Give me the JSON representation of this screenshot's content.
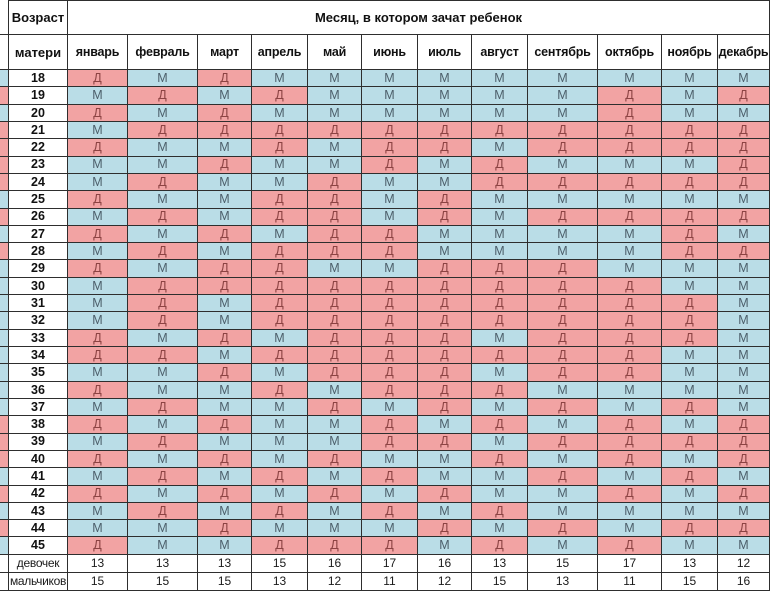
{
  "chart_data": {
    "type": "table",
    "title": "Месяц, в котором зачат ребенок",
    "age_header_top": "Возраст",
    "age_header_bottom": "матери",
    "months": [
      "январь",
      "февраль",
      "март",
      "апрель",
      "май",
      "июнь",
      "июль",
      "август",
      "сентябрь",
      "октябрь",
      "ноябрь",
      "декабрь"
    ],
    "girl_letter": "Д",
    "boy_letter": "М",
    "colors": {
      "girl_bg": "#f2a3a3",
      "boy_bg": "#badde7",
      "girl_text": "#8c4343",
      "boy_text": "#4d5f6b",
      "grid_line": "#2e2e2e"
    },
    "rows": [
      {
        "age": "18",
        "cells": [
          "Д",
          "М",
          "Д",
          "М",
          "М",
          "М",
          "М",
          "М",
          "М",
          "М",
          "М",
          "М"
        ]
      },
      {
        "age": "19",
        "cells": [
          "М",
          "Д",
          "М",
          "Д",
          "М",
          "М",
          "М",
          "М",
          "М",
          "Д",
          "М",
          "Д"
        ]
      },
      {
        "age": "20",
        "cells": [
          "Д",
          "М",
          "Д",
          "М",
          "М",
          "М",
          "М",
          "М",
          "М",
          "Д",
          "М",
          "М"
        ]
      },
      {
        "age": "21",
        "cells": [
          "М",
          "Д",
          "Д",
          "Д",
          "Д",
          "Д",
          "Д",
          "Д",
          "Д",
          "Д",
          "Д",
          "Д"
        ]
      },
      {
        "age": "22",
        "cells": [
          "Д",
          "М",
          "М",
          "Д",
          "М",
          "Д",
          "Д",
          "М",
          "Д",
          "Д",
          "Д",
          "Д"
        ]
      },
      {
        "age": "23",
        "cells": [
          "М",
          "М",
          "Д",
          "М",
          "М",
          "Д",
          "М",
          "Д",
          "М",
          "М",
          "М",
          "Д"
        ]
      },
      {
        "age": "24",
        "cells": [
          "М",
          "Д",
          "М",
          "М",
          "Д",
          "М",
          "М",
          "Д",
          "Д",
          "Д",
          "Д",
          "Д"
        ]
      },
      {
        "age": "25",
        "cells": [
          "Д",
          "М",
          "М",
          "Д",
          "Д",
          "М",
          "Д",
          "М",
          "М",
          "М",
          "М",
          "М"
        ]
      },
      {
        "age": "26",
        "cells": [
          "М",
          "Д",
          "М",
          "Д",
          "Д",
          "М",
          "Д",
          "М",
          "Д",
          "Д",
          "Д",
          "Д"
        ]
      },
      {
        "age": "27",
        "cells": [
          "Д",
          "М",
          "Д",
          "М",
          "Д",
          "Д",
          "М",
          "М",
          "М",
          "М",
          "Д",
          "М"
        ]
      },
      {
        "age": "28",
        "cells": [
          "М",
          "Д",
          "М",
          "Д",
          "Д",
          "Д",
          "М",
          "М",
          "М",
          "М",
          "Д",
          "Д"
        ]
      },
      {
        "age": "29",
        "cells": [
          "Д",
          "М",
          "Д",
          "Д",
          "М",
          "М",
          "Д",
          "Д",
          "Д",
          "М",
          "М",
          "М"
        ]
      },
      {
        "age": "30",
        "cells": [
          "М",
          "Д",
          "Д",
          "Д",
          "Д",
          "Д",
          "Д",
          "Д",
          "Д",
          "Д",
          "М",
          "М"
        ]
      },
      {
        "age": "31",
        "cells": [
          "М",
          "Д",
          "М",
          "Д",
          "Д",
          "Д",
          "Д",
          "Д",
          "Д",
          "Д",
          "Д",
          "М"
        ]
      },
      {
        "age": "32",
        "cells": [
          "М",
          "Д",
          "М",
          "Д",
          "Д",
          "Д",
          "Д",
          "Д",
          "Д",
          "Д",
          "Д",
          "М"
        ]
      },
      {
        "age": "33",
        "cells": [
          "Д",
          "М",
          "Д",
          "М",
          "Д",
          "Д",
          "Д",
          "М",
          "Д",
          "Д",
          "Д",
          "М"
        ]
      },
      {
        "age": "34",
        "cells": [
          "Д",
          "Д",
          "М",
          "Д",
          "Д",
          "Д",
          "Д",
          "Д",
          "Д",
          "Д",
          "М",
          "М"
        ]
      },
      {
        "age": "35",
        "cells": [
          "М",
          "М",
          "Д",
          "М",
          "Д",
          "Д",
          "Д",
          "М",
          "Д",
          "Д",
          "М",
          "М"
        ]
      },
      {
        "age": "36",
        "cells": [
          "Д",
          "М",
          "М",
          "Д",
          "М",
          "Д",
          "Д",
          "Д",
          "М",
          "М",
          "М",
          "М"
        ]
      },
      {
        "age": "37",
        "cells": [
          "М",
          "Д",
          "М",
          "М",
          "Д",
          "М",
          "Д",
          "М",
          "Д",
          "М",
          "Д",
          "М"
        ]
      },
      {
        "age": "38",
        "cells": [
          "Д",
          "М",
          "Д",
          "М",
          "М",
          "Д",
          "М",
          "Д",
          "М",
          "Д",
          "М",
          "Д"
        ]
      },
      {
        "age": "39",
        "cells": [
          "М",
          "Д",
          "М",
          "М",
          "М",
          "Д",
          "Д",
          "М",
          "Д",
          "Д",
          "Д",
          "Д"
        ]
      },
      {
        "age": "40",
        "cells": [
          "Д",
          "М",
          "Д",
          "М",
          "Д",
          "М",
          "М",
          "Д",
          "М",
          "Д",
          "М",
          "Д"
        ]
      },
      {
        "age": "41",
        "cells": [
          "М",
          "Д",
          "М",
          "Д",
          "М",
          "Д",
          "М",
          "М",
          "Д",
          "М",
          "Д",
          "М"
        ]
      },
      {
        "age": "42",
        "cells": [
          "Д",
          "М",
          "Д",
          "М",
          "Д",
          "М",
          "Д",
          "М",
          "М",
          "Д",
          "М",
          "Д"
        ]
      },
      {
        "age": "43",
        "cells": [
          "М",
          "Д",
          "М",
          "Д",
          "М",
          "Д",
          "М",
          "Д",
          "М",
          "М",
          "М",
          "М"
        ]
      },
      {
        "age": "44",
        "cells": [
          "М",
          "М",
          "Д",
          "М",
          "М",
          "М",
          "Д",
          "М",
          "Д",
          "М",
          "Д",
          "Д"
        ]
      },
      {
        "age": "45",
        "cells": [
          "Д",
          "М",
          "М",
          "Д",
          "Д",
          "Д",
          "М",
          "Д",
          "М",
          "Д",
          "М",
          "М"
        ]
      }
    ],
    "summary": [
      {
        "label": "девочек",
        "values": [
          "13",
          "13",
          "13",
          "15",
          "16",
          "17",
          "16",
          "13",
          "15",
          "17",
          "13",
          "12"
        ]
      },
      {
        "label": "мальчиков",
        "values": [
          "15",
          "15",
          "15",
          "13",
          "12",
          "11",
          "12",
          "15",
          "13",
          "11",
          "15",
          "16"
        ]
      }
    ]
  }
}
